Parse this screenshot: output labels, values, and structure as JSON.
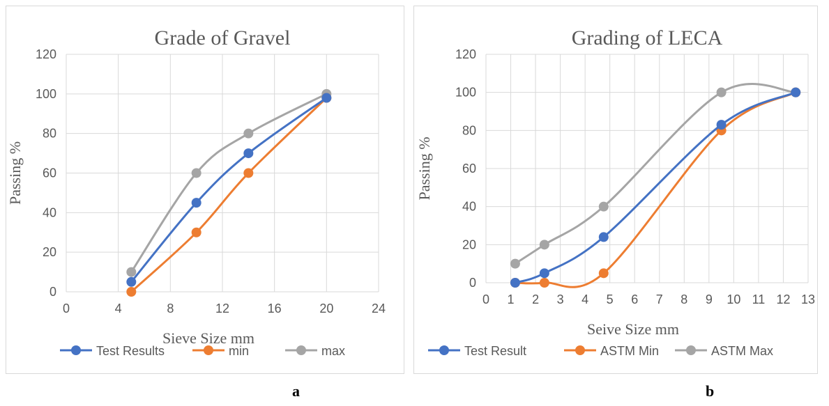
{
  "chart_data": [
    {
      "type": "line",
      "title": "Grade of Gravel",
      "xlabel": "Sieve Size mm",
      "ylabel": "Passing %",
      "xlim": [
        0,
        24
      ],
      "ylim": [
        0,
        120
      ],
      "xticks": [
        0,
        4,
        8,
        12,
        16,
        20,
        24
      ],
      "yticks": [
        0,
        20,
        40,
        60,
        80,
        100,
        120
      ],
      "grid": true,
      "legend": "bottom",
      "series": [
        {
          "name": "Test Results",
          "color": "#4472C4",
          "x": [
            5,
            10,
            14,
            20
          ],
          "y": [
            5,
            45,
            70,
            98
          ]
        },
        {
          "name": "min",
          "color": "#ED7D31",
          "x": [
            5,
            10,
            14,
            20
          ],
          "y": [
            0,
            30,
            60,
            98
          ]
        },
        {
          "name": "max",
          "color": "#A5A5A5",
          "x": [
            5,
            10,
            14,
            20
          ],
          "y": [
            10,
            60,
            80,
            100
          ]
        }
      ]
    },
    {
      "type": "line",
      "title": "Grading of LECA",
      "xlabel": "Seive Size mm",
      "ylabel": "Passing %",
      "xlim": [
        0,
        13
      ],
      "ylim": [
        0,
        120
      ],
      "xticks": [
        0,
        1,
        2,
        3,
        4,
        5,
        6,
        7,
        8,
        9,
        10,
        11,
        12,
        13
      ],
      "yticks": [
        0,
        20,
        40,
        60,
        80,
        100,
        120
      ],
      "grid": true,
      "legend": "bottom",
      "series": [
        {
          "name": "Test Result",
          "color": "#4472C4",
          "x": [
            1.18,
            2.36,
            4.75,
            9.5,
            12.5
          ],
          "y": [
            0,
            5,
            24,
            83,
            100
          ]
        },
        {
          "name": "ASTM Min",
          "color": "#ED7D31",
          "x": [
            1.18,
            2.36,
            4.75,
            9.5,
            12.5
          ],
          "y": [
            0,
            0,
            5,
            80,
            100
          ]
        },
        {
          "name": "ASTM Max",
          "color": "#A5A5A5",
          "x": [
            1.18,
            2.36,
            4.75,
            9.5,
            12.5
          ],
          "y": [
            10,
            20,
            40,
            100,
            100
          ]
        }
      ]
    }
  ],
  "labels": {
    "a": "a",
    "b": "b"
  }
}
